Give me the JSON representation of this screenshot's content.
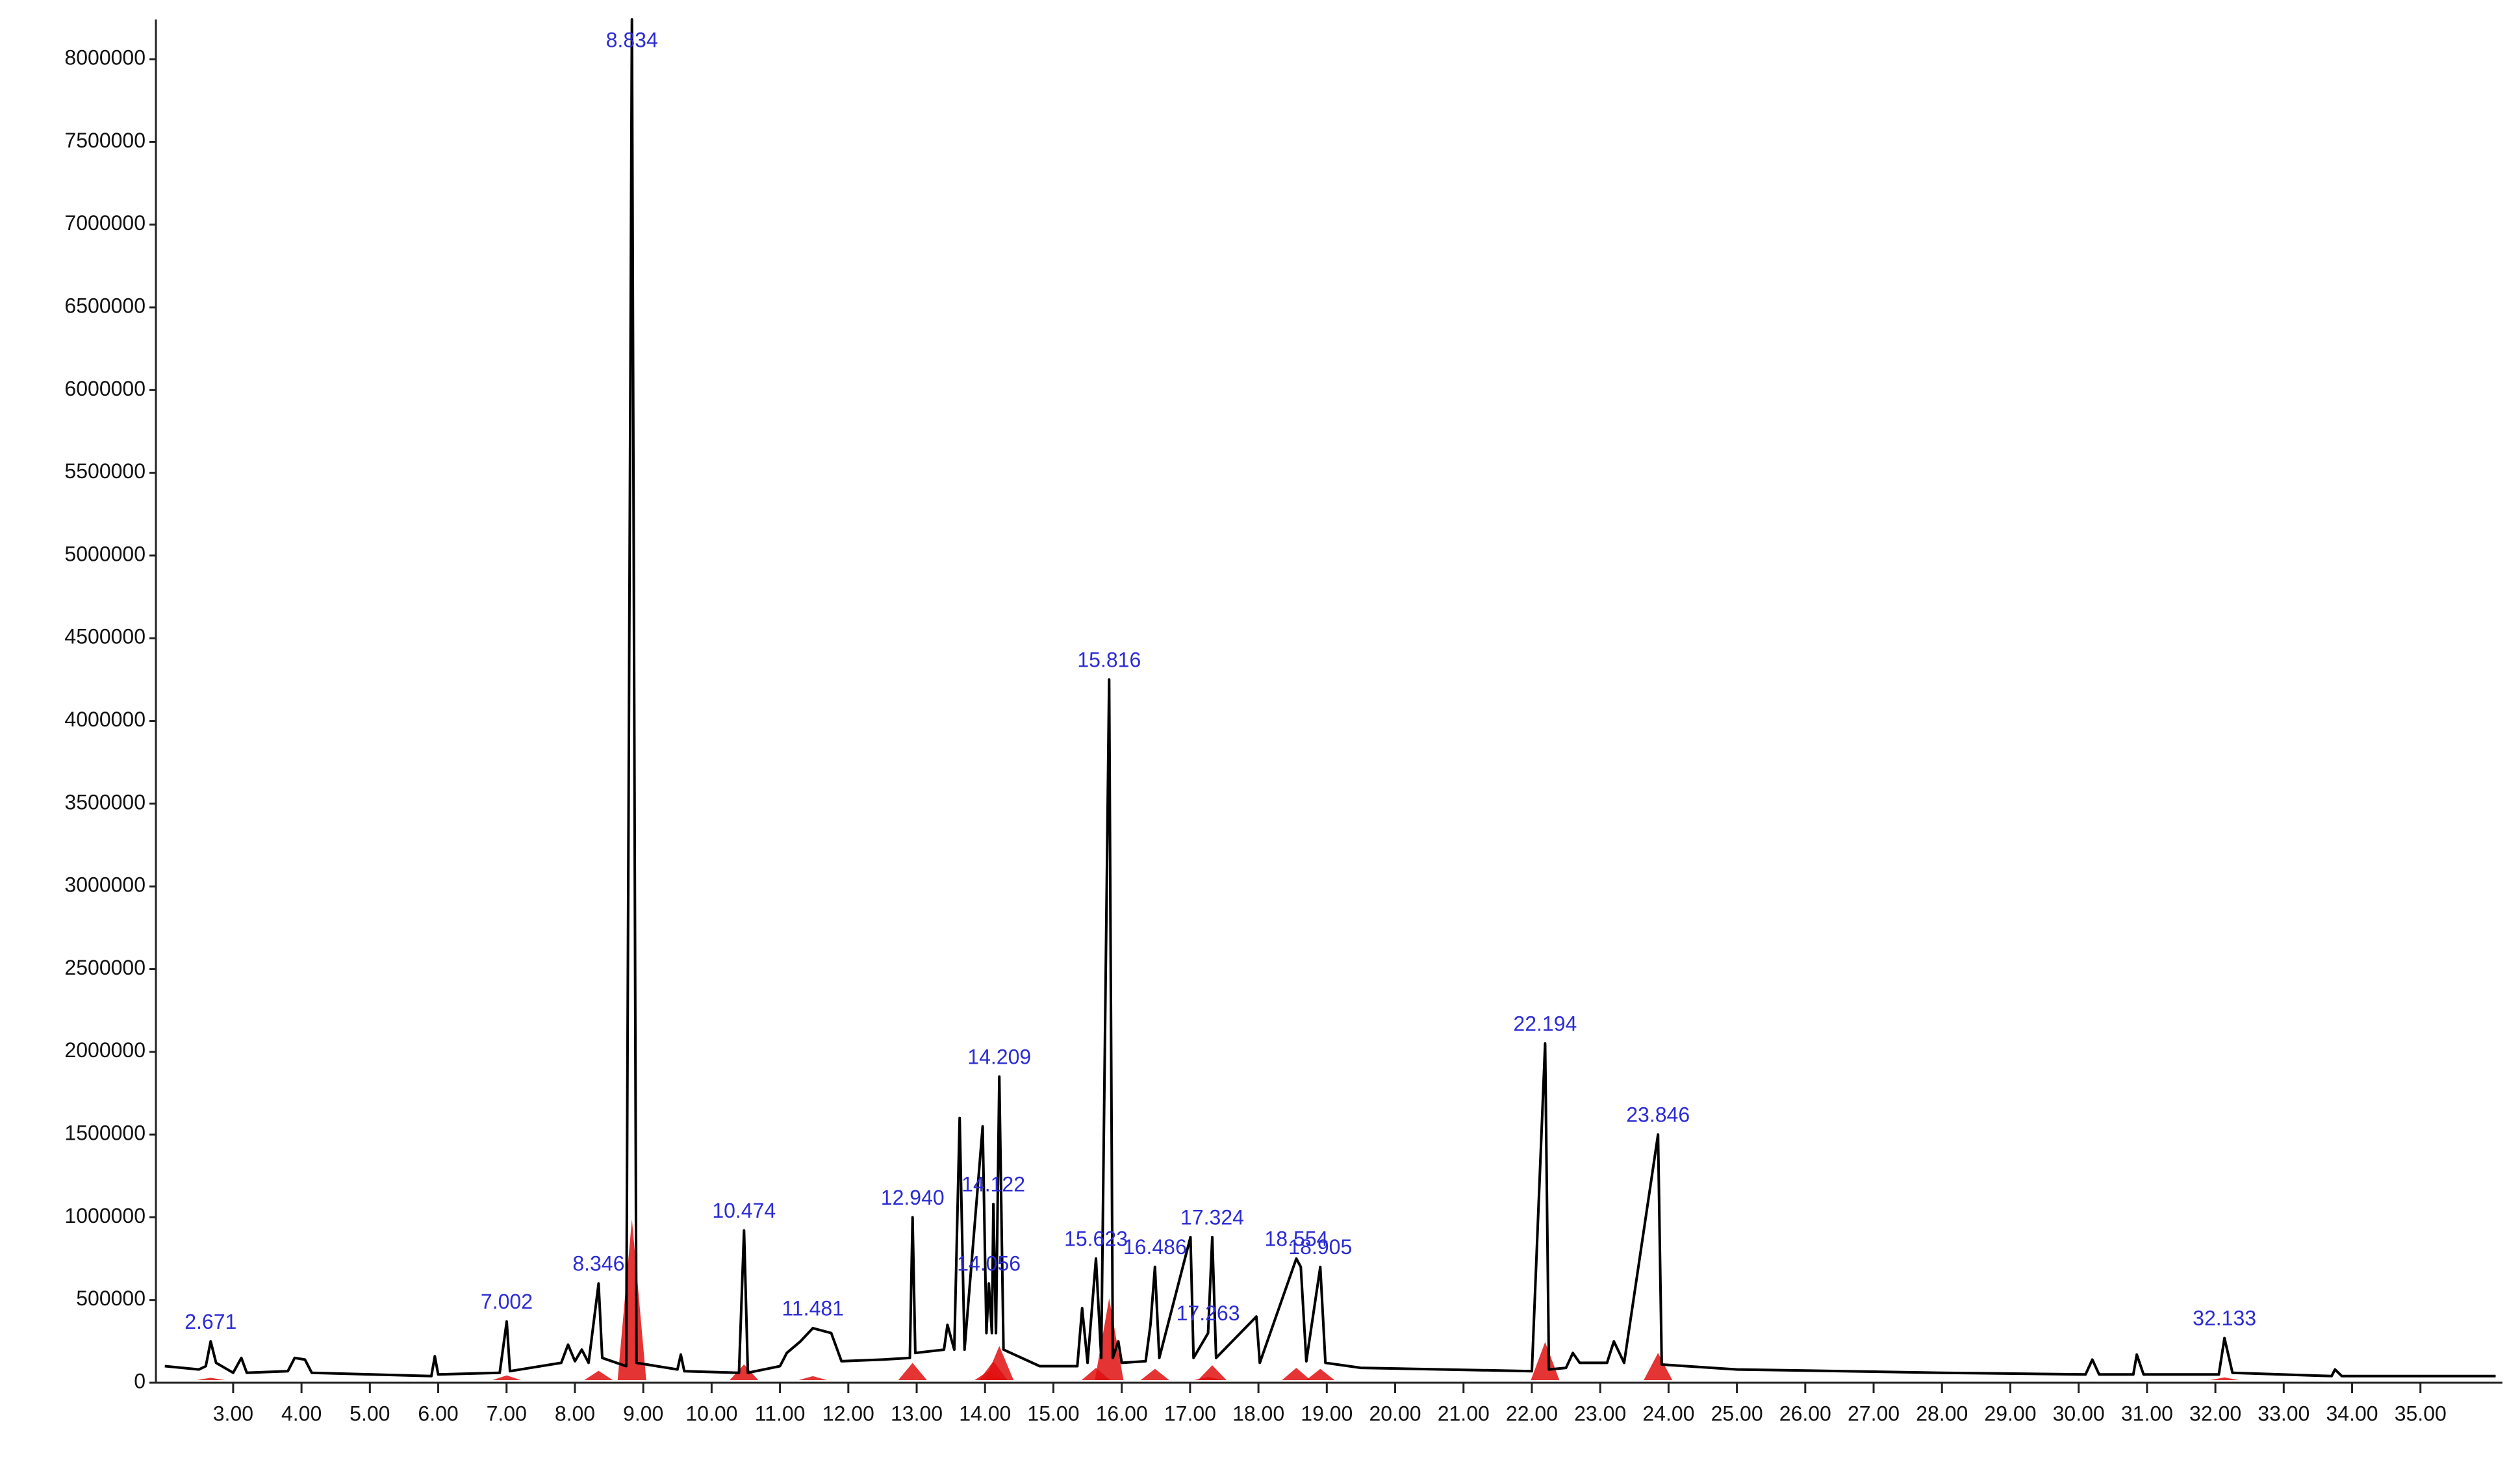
{
  "chart_data": {
    "type": "chromatogram",
    "xlim": [
      1.87,
      36.2
    ],
    "ylim": [
      0,
      8240000
    ],
    "xticks": [
      {
        "value": 3,
        "label": "3.00"
      },
      {
        "value": 4,
        "label": "4.00"
      },
      {
        "value": 5,
        "label": "5.00"
      },
      {
        "value": 6,
        "label": "6.00"
      },
      {
        "value": 7,
        "label": "7.00"
      },
      {
        "value": 8,
        "label": "8.00"
      },
      {
        "value": 9,
        "label": "9.00"
      },
      {
        "value": 10,
        "label": "10.00"
      },
      {
        "value": 11,
        "label": "11.00"
      },
      {
        "value": 12,
        "label": "12.00"
      },
      {
        "value": 13,
        "label": "13.00"
      },
      {
        "value": 14,
        "label": "14.00"
      },
      {
        "value": 15,
        "label": "15.00"
      },
      {
        "value": 16,
        "label": "16.00"
      },
      {
        "value": 17,
        "label": "17.00"
      },
      {
        "value": 18,
        "label": "18.00"
      },
      {
        "value": 19,
        "label": "19.00"
      },
      {
        "value": 20,
        "label": "20.00"
      },
      {
        "value": 21,
        "label": "21.00"
      },
      {
        "value": 22,
        "label": "22.00"
      },
      {
        "value": 23,
        "label": "23.00"
      },
      {
        "value": 24,
        "label": "24.00"
      },
      {
        "value": 25,
        "label": "25.00"
      },
      {
        "value": 26,
        "label": "26.00"
      },
      {
        "value": 27,
        "label": "27.00"
      },
      {
        "value": 28,
        "label": "28.00"
      },
      {
        "value": 29,
        "label": "29.00"
      },
      {
        "value": 30,
        "label": "30.00"
      },
      {
        "value": 31,
        "label": "31.00"
      },
      {
        "value": 32,
        "label": "32.00"
      },
      {
        "value": 33,
        "label": "33.00"
      },
      {
        "value": 34,
        "label": "34.00"
      },
      {
        "value": 35,
        "label": "35.00"
      }
    ],
    "yticks": [
      0,
      500000,
      1000000,
      1500000,
      2000000,
      2500000,
      3000000,
      3500000,
      4000000,
      4500000,
      5000000,
      5500000,
      6000000,
      6500000,
      7000000,
      7500000,
      8000000
    ],
    "trace": {
      "color": "#000000",
      "x": [
        2.0,
        2.5,
        2.6,
        2.671,
        2.75,
        3.0,
        3.12,
        3.2,
        3.8,
        3.9,
        4.05,
        4.15,
        5.9,
        5.95,
        6.0,
        6.9,
        7.002,
        7.05,
        7.8,
        7.9,
        8.0,
        8.1,
        8.2,
        8.346,
        8.4,
        8.75,
        8.834,
        8.9,
        9.5,
        9.55,
        9.6,
        10.4,
        10.474,
        10.53,
        11.0,
        11.1,
        11.3,
        11.481,
        11.75,
        11.9,
        12.5,
        12.9,
        12.94,
        12.98,
        13.4,
        13.45,
        13.55,
        13.629,
        13.7,
        13.965,
        14.02,
        14.056,
        14.1,
        14.122,
        14.16,
        14.209,
        14.27,
        14.8,
        15.35,
        15.42,
        15.5,
        15.623,
        15.7,
        15.816,
        15.87,
        15.95,
        16.0,
        16.35,
        16.42,
        16.486,
        16.55,
        17.006,
        17.05,
        17.263,
        17.324,
        17.38,
        17.97,
        18.02,
        18.554,
        18.62,
        18.7,
        18.905,
        18.98,
        19.5,
        22.0,
        22.194,
        22.25,
        22.5,
        22.6,
        22.7,
        23.1,
        23.2,
        23.35,
        23.846,
        23.9,
        25.0,
        28.0,
        30.1,
        30.2,
        30.3,
        30.8,
        30.85,
        30.95,
        32.05,
        32.133,
        32.25,
        33.7,
        33.75,
        33.85,
        36.1
      ],
      "values": [
        100000,
        80000,
        100000,
        250000,
        120000,
        60000,
        150000,
        60000,
        70000,
        150000,
        140000,
        60000,
        40000,
        160000,
        50000,
        60000,
        370000,
        70000,
        120000,
        230000,
        130000,
        200000,
        120000,
        600000,
        150000,
        100000,
        8240000,
        120000,
        80000,
        170000,
        70000,
        60000,
        920000,
        60000,
        100000,
        180000,
        250000,
        330000,
        300000,
        130000,
        140000,
        150000,
        1000000,
        180000,
        200000,
        350000,
        200000,
        1600000,
        200000,
        1550000,
        300000,
        600000,
        300000,
        1080000,
        300000,
        1850000,
        200000,
        100000,
        100000,
        450000,
        120000,
        750000,
        150000,
        4250000,
        150000,
        250000,
        120000,
        130000,
        350000,
        700000,
        150000,
        880000,
        150000,
        300000,
        880000,
        150000,
        400000,
        120000,
        750000,
        700000,
        130000,
        700000,
        120000,
        90000,
        70000,
        2050000,
        80000,
        90000,
        180000,
        120000,
        120000,
        250000,
        120000,
        1500000,
        110000,
        80000,
        60000,
        50000,
        140000,
        50000,
        50000,
        170000,
        50000,
        50000,
        270000,
        60000,
        40000,
        80000,
        40000,
        40000
      ]
    },
    "peaks": {
      "color": "#e01010",
      "label_color": "#2b2bd4",
      "x": [
        2.671,
        7.002,
        8.346,
        8.834,
        10.474,
        11.481,
        12.94,
        14.209,
        14.122,
        14.056,
        15.816,
        15.623,
        16.486,
        17.324,
        17.263,
        18.554,
        18.905,
        22.194,
        23.846,
        32.133
      ],
      "values": [
        250000,
        370000,
        600000,
        8240000,
        920000,
        330000,
        1000000,
        1850000,
        1080000,
        600000,
        4250000,
        750000,
        700000,
        880000,
        300000,
        750000,
        700000,
        2050000,
        1500000,
        270000
      ],
      "labels": [
        "2.671",
        "7.002",
        "8.346",
        "8.834",
        "10.474",
        "11.481",
        "12.940",
        "14.209",
        "14.122",
        "14.056",
        "15.816",
        "15.623",
        "16.486",
        "17.324",
        "17.263",
        "18.554",
        "18.905",
        "22.194",
        "23.846",
        "32.133"
      ]
    }
  }
}
